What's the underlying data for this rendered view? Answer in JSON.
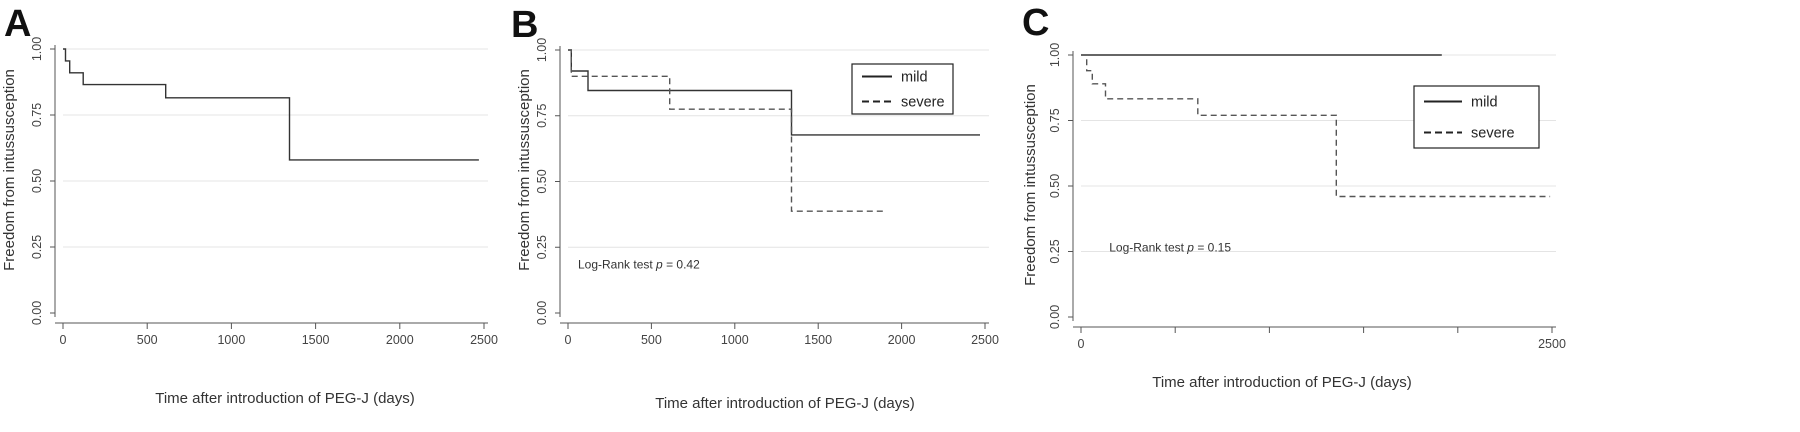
{
  "chart_data": [
    {
      "type": "line",
      "panel": "A",
      "ylabel": "Freedom from intussusception",
      "xlabel": "Time after introduction of PEG-J (days)",
      "xlim": [
        0,
        2500
      ],
      "ylim": [
        0,
        1
      ],
      "xticks": [
        "0",
        "500",
        "1000",
        "1500",
        "2000",
        "2500"
      ],
      "yticks": [
        "0.00",
        "0.25",
        "0.50",
        "0.75",
        "1.00"
      ],
      "grid": "horizontal",
      "series": [
        {
          "style": "solid",
          "x": [
            0,
            15,
            15,
            40,
            40,
            120,
            120,
            610,
            610,
            1345,
            1345,
            2470
          ],
          "y": [
            1.0,
            1.0,
            0.955,
            0.955,
            0.91,
            0.91,
            0.865,
            0.865,
            0.815,
            0.815,
            0.58,
            0.58
          ]
        }
      ]
    },
    {
      "type": "line",
      "panel": "B",
      "ylabel": "Freedom from intussusception",
      "xlabel": "Time after introduction of PEG-J (days)",
      "xlim": [
        0,
        2500
      ],
      "ylim": [
        0,
        1
      ],
      "xticks": [
        "0",
        "500",
        "1000",
        "1500",
        "2000",
        "2500"
      ],
      "yticks": [
        "0.00",
        "0.25",
        "0.50",
        "0.75",
        "1.00"
      ],
      "grid": "horizontal",
      "legend": "top-right",
      "annotation": {
        "prefix": "Log-Rank test ",
        "p": "p",
        "suffix": " = 0.42",
        "x": 60,
        "y": 0.17
      },
      "series": [
        {
          "name": "mild",
          "style": "solid",
          "x": [
            0,
            20,
            20,
            120,
            120,
            1340,
            1340,
            2470
          ],
          "y": [
            1.0,
            1.0,
            0.92,
            0.92,
            0.846,
            0.846,
            0.677,
            0.677
          ]
        },
        {
          "name": "severe",
          "style": "dashed",
          "x": [
            0,
            20,
            20,
            610,
            610,
            1340,
            1340,
            1900
          ],
          "y": [
            1.0,
            1.0,
            0.9,
            0.9,
            0.775,
            0.775,
            0.387,
            0.387
          ]
        }
      ]
    },
    {
      "type": "line",
      "panel": "C",
      "ylabel": "Freedom from intussusception",
      "xlabel": "Time after introduction of PEG-J (days)",
      "xlim": [
        0,
        2500
      ],
      "ylim": [
        0,
        1
      ],
      "xticks": [
        "0",
        "2500"
      ],
      "yticks": [
        "0.00",
        "0.25",
        "0.50",
        "0.75",
        "1.00"
      ],
      "grid": "horizontal",
      "legend": "top-right",
      "annotation": {
        "prefix": "Log-Rank test ",
        "p": "p",
        "suffix": " = 0.15",
        "x": 150,
        "y": 0.25
      },
      "series": [
        {
          "name": "mild",
          "style": "solid",
          "x": [
            0,
            1915
          ],
          "y": [
            1.0,
            1.0
          ]
        },
        {
          "name": "severe",
          "style": "dashed",
          "x": [
            0,
            30,
            30,
            60,
            60,
            130,
            130,
            620,
            620,
            1355,
            1355,
            2490
          ],
          "y": [
            1.0,
            1.0,
            0.94,
            0.94,
            0.89,
            0.89,
            0.833,
            0.833,
            0.77,
            0.77,
            0.46,
            0.46
          ]
        }
      ]
    }
  ]
}
